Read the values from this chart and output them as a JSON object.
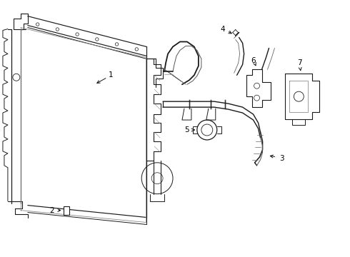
{
  "background_color": "#ffffff",
  "line_color": "#1a1a1a",
  "figsize": [
    4.9,
    3.6
  ],
  "dpi": 100,
  "lw_main": 1.0,
  "lw_thin": 0.6,
  "label_fontsize": 7.5
}
